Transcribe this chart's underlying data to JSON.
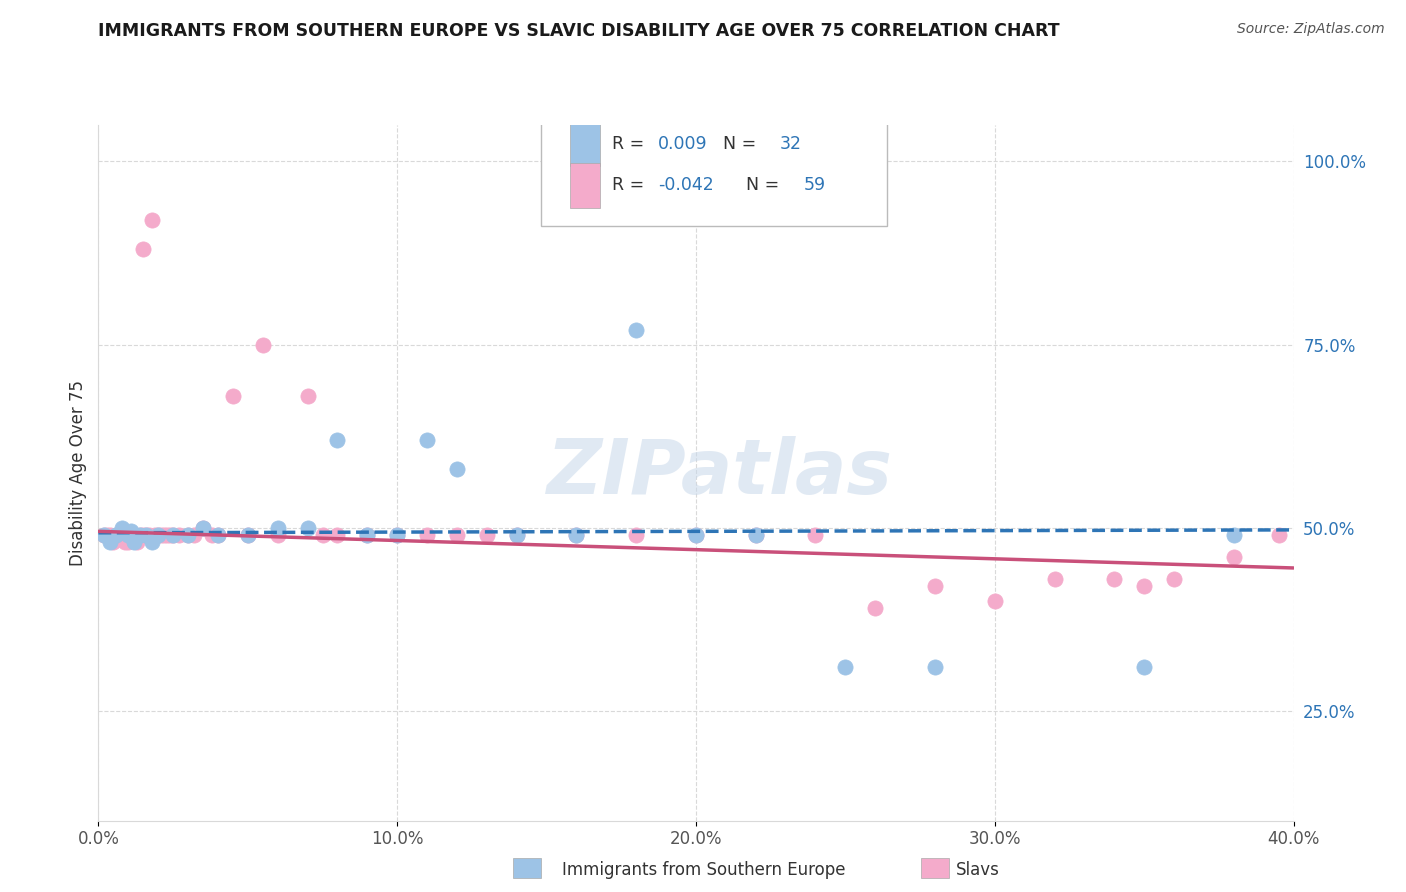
{
  "title": "IMMIGRANTS FROM SOUTHERN EUROPE VS SLAVIC DISABILITY AGE OVER 75 CORRELATION CHART",
  "source": "Source: ZipAtlas.com",
  "xlabel_blue": "Immigrants from Southern Europe",
  "xlabel_pink": "Slavs",
  "ylabel": "Disability Age Over 75",
  "xlim": [
    0.0,
    0.4
  ],
  "ylim": [
    0.1,
    1.05
  ],
  "xtick_vals": [
    0.0,
    0.1,
    0.2,
    0.3,
    0.4
  ],
  "xtick_labels": [
    "0.0%",
    "10.0%",
    "20.0%",
    "30.0%",
    "40.0%"
  ],
  "ytick_right_vals": [
    0.25,
    0.5,
    0.75,
    1.0
  ],
  "ytick_right_labels": [
    "25.0%",
    "50.0%",
    "75.0%",
    "100.0%"
  ],
  "blue_color": "#9DC3E6",
  "pink_color": "#F4ABCB",
  "blue_line_color": "#2E75B6",
  "pink_line_color": "#C9507A",
  "r_color": "#2E75B6",
  "legend_r_blue": "0.009",
  "legend_n_blue": "32",
  "legend_r_pink": "-0.042",
  "legend_n_pink": "59",
  "watermark": "ZIPatlas",
  "background_color": "#FFFFFF",
  "grid_color": "#D9D9D9",
  "blue_scatter_x": [
    0.002,
    0.004,
    0.006,
    0.008,
    0.01,
    0.011,
    0.012,
    0.014,
    0.016,
    0.018,
    0.02,
    0.025,
    0.03,
    0.035,
    0.04,
    0.05,
    0.06,
    0.07,
    0.08,
    0.09,
    0.1,
    0.11,
    0.12,
    0.14,
    0.16,
    0.18,
    0.2,
    0.22,
    0.25,
    0.28,
    0.35,
    0.38
  ],
  "blue_scatter_y": [
    0.49,
    0.48,
    0.49,
    0.5,
    0.49,
    0.495,
    0.48,
    0.49,
    0.49,
    0.48,
    0.49,
    0.49,
    0.49,
    0.5,
    0.49,
    0.49,
    0.5,
    0.5,
    0.62,
    0.49,
    0.49,
    0.62,
    0.58,
    0.49,
    0.49,
    0.77,
    0.49,
    0.49,
    0.31,
    0.31,
    0.31,
    0.49
  ],
  "pink_scatter_x": [
    0.002,
    0.003,
    0.004,
    0.005,
    0.006,
    0.007,
    0.008,
    0.009,
    0.01,
    0.01,
    0.011,
    0.012,
    0.013,
    0.014,
    0.015,
    0.015,
    0.016,
    0.017,
    0.018,
    0.019,
    0.02,
    0.021,
    0.022,
    0.023,
    0.024,
    0.025,
    0.027,
    0.03,
    0.032,
    0.035,
    0.038,
    0.04,
    0.045,
    0.05,
    0.055,
    0.06,
    0.07,
    0.075,
    0.08,
    0.09,
    0.1,
    0.11,
    0.12,
    0.13,
    0.14,
    0.16,
    0.18,
    0.2,
    0.22,
    0.24,
    0.26,
    0.28,
    0.3,
    0.32,
    0.34,
    0.35,
    0.36,
    0.38,
    0.395
  ],
  "pink_scatter_y": [
    0.49,
    0.49,
    0.49,
    0.48,
    0.49,
    0.49,
    0.49,
    0.48,
    0.49,
    0.48,
    0.49,
    0.49,
    0.48,
    0.49,
    0.49,
    0.88,
    0.49,
    0.49,
    0.92,
    0.49,
    0.49,
    0.49,
    0.49,
    0.49,
    0.49,
    0.49,
    0.49,
    0.49,
    0.49,
    0.5,
    0.49,
    0.49,
    0.68,
    0.49,
    0.75,
    0.49,
    0.68,
    0.49,
    0.49,
    0.49,
    0.49,
    0.49,
    0.49,
    0.49,
    0.49,
    0.49,
    0.49,
    0.49,
    0.49,
    0.49,
    0.39,
    0.42,
    0.4,
    0.43,
    0.43,
    0.42,
    0.43,
    0.46,
    0.49
  ]
}
